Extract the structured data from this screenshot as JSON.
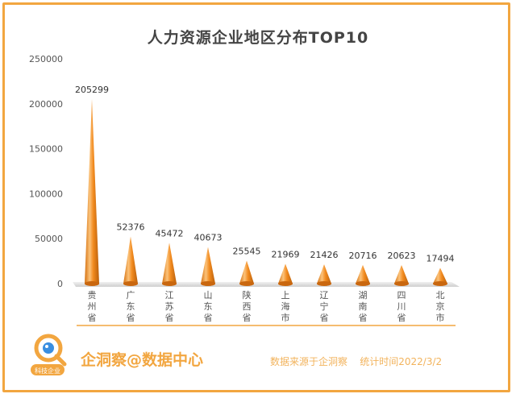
{
  "chart_data": {
    "type": "bar",
    "title": "人力资源企业地区分布TOP10",
    "categories": [
      "贵州省",
      "广东省",
      "江苏省",
      "山东省",
      "陕西省",
      "上海市",
      "辽宁省",
      "湖南省",
      "四川省",
      "北京市"
    ],
    "values": [
      205299,
      52376,
      45472,
      40673,
      25545,
      21969,
      21426,
      20716,
      20623,
      17494
    ],
    "yticks": [
      "0",
      "50000",
      "100000",
      "150000",
      "200000",
      "250000"
    ],
    "ylim": [
      0,
      250000
    ],
    "xlabel": "",
    "ylabel": "",
    "grid": false,
    "legend": "none",
    "colors": {
      "bar": "#f28a1e",
      "bar_highlight": "#fbc27a",
      "bar_shadow": "#c9670f"
    }
  },
  "footer": {
    "brand": "企洞察@数据中心",
    "logo_text": "科技企业",
    "source": "数据来源于企洞察    统计时间2022/3/2"
  },
  "colors": {
    "accent": "#f2a640",
    "floor": "#d9d9d9"
  }
}
